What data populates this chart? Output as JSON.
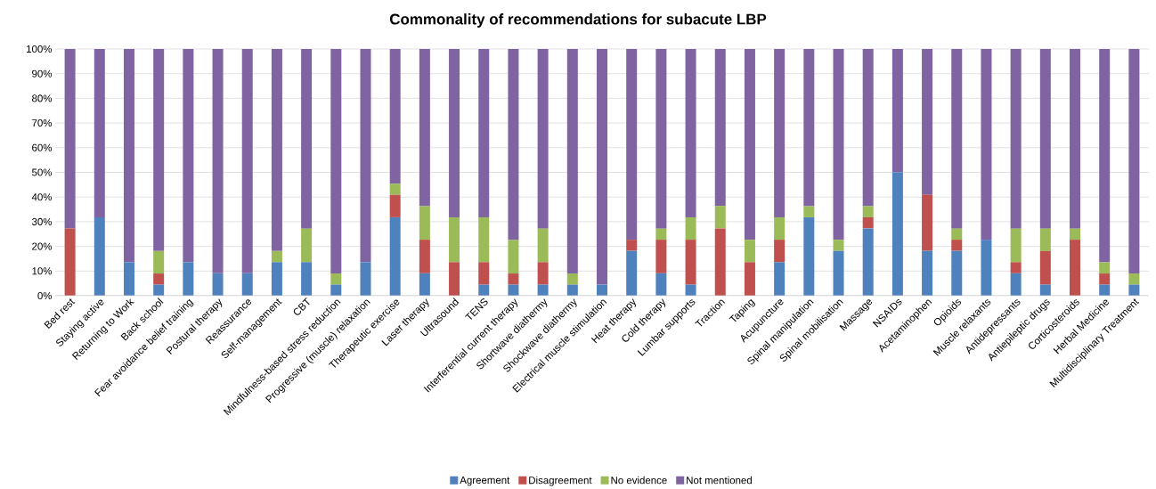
{
  "chart_data": {
    "type": "bar",
    "stacked": true,
    "title": "Commonality of recommendations for subacute LBP",
    "categories": [
      "Bed rest",
      "Staying active",
      "Returning to Work",
      "Back school",
      "Fear avoidance belief training",
      "Postural therapy",
      "Reassurance",
      "Self-management",
      "CBT",
      "Mindfulness-based stress reduction",
      "Progressive (muscle) relaxation",
      "Therapeutic exercise",
      "Laser therapy",
      "Ultrasound",
      "TENS",
      "Interferential current therapy",
      "Shortwave diathermy",
      "Shockwave diathermy",
      "Electrical muscle stimulation",
      "Heat therapy",
      "Cold therapy",
      "Lumbar supports",
      "Traction",
      "Taping",
      "Acupuncture",
      "Spinal manipulation",
      "Spinal mobilisation",
      "Massage",
      "NSAIDs",
      "Acetaminophen",
      "Opioids",
      "Muscle relaxants",
      "Antidepressants",
      "Antiepileptic drugs",
      "Corticosteroids",
      "Herbal Medicine",
      "Multidisciplinary Treatment"
    ],
    "series": [
      {
        "name": "Agreement",
        "color": "#4f81bd",
        "values": [
          0,
          31.8,
          13.6,
          4.5,
          13.6,
          9.1,
          9.1,
          13.6,
          13.6,
          4.5,
          13.6,
          31.8,
          9.1,
          0,
          4.5,
          4.5,
          4.5,
          4.5,
          4.5,
          18.2,
          9.1,
          4.5,
          0,
          0,
          13.6,
          31.8,
          18.2,
          27.3,
          50,
          18.2,
          18.2,
          22.7,
          9.1,
          4.5,
          0,
          4.5,
          4.5
        ]
      },
      {
        "name": "Disagreement",
        "color": "#c0504d",
        "values": [
          27.3,
          0,
          0,
          4.5,
          0,
          0,
          0,
          0,
          0,
          0,
          0,
          9.1,
          13.6,
          13.6,
          9.1,
          4.5,
          9.1,
          0,
          0,
          4.5,
          13.6,
          18.2,
          27.3,
          13.6,
          9.1,
          0,
          0,
          4.5,
          0,
          22.7,
          4.5,
          0,
          4.5,
          13.6,
          22.7,
          4.5,
          0
        ]
      },
      {
        "name": "No evidence",
        "color": "#9bbb59",
        "values": [
          0,
          0,
          0,
          9.1,
          0,
          0,
          0,
          4.5,
          13.6,
          4.5,
          0,
          4.5,
          13.6,
          18.2,
          18.2,
          13.6,
          13.6,
          4.5,
          0,
          0,
          4.5,
          9.1,
          9.1,
          9.1,
          9.1,
          4.5,
          4.5,
          4.5,
          0,
          0,
          4.5,
          0,
          13.6,
          9.1,
          4.5,
          4.5,
          4.5
        ]
      },
      {
        "name": "Not mentioned",
        "color": "#8064a2",
        "values": [
          72.7,
          68.2,
          86.4,
          81.9,
          86.4,
          90.9,
          90.9,
          81.9,
          72.8,
          91.0,
          86.4,
          54.6,
          63.7,
          68.2,
          68.2,
          77.4,
          72.8,
          91.0,
          95.5,
          77.3,
          72.8,
          68.2,
          63.6,
          77.3,
          68.2,
          63.7,
          77.3,
          63.7,
          50,
          59.1,
          72.8,
          77.3,
          72.8,
          72.8,
          72.8,
          86.5,
          91.0
        ]
      }
    ],
    "ylim": [
      0,
      100
    ],
    "yticks": [
      {
        "value": 0,
        "label": "0%"
      },
      {
        "value": 10,
        "label": "10%"
      },
      {
        "value": 20,
        "label": "20%"
      },
      {
        "value": 30,
        "label": "30%"
      },
      {
        "value": 40,
        "label": "40%"
      },
      {
        "value": 50,
        "label": "50%"
      },
      {
        "value": 60,
        "label": "60%"
      },
      {
        "value": 70,
        "label": "70%"
      },
      {
        "value": 80,
        "label": "80%"
      },
      {
        "value": 90,
        "label": "90%"
      },
      {
        "value": 100,
        "label": "100%"
      }
    ],
    "grid": "y",
    "legend": "bottom"
  }
}
